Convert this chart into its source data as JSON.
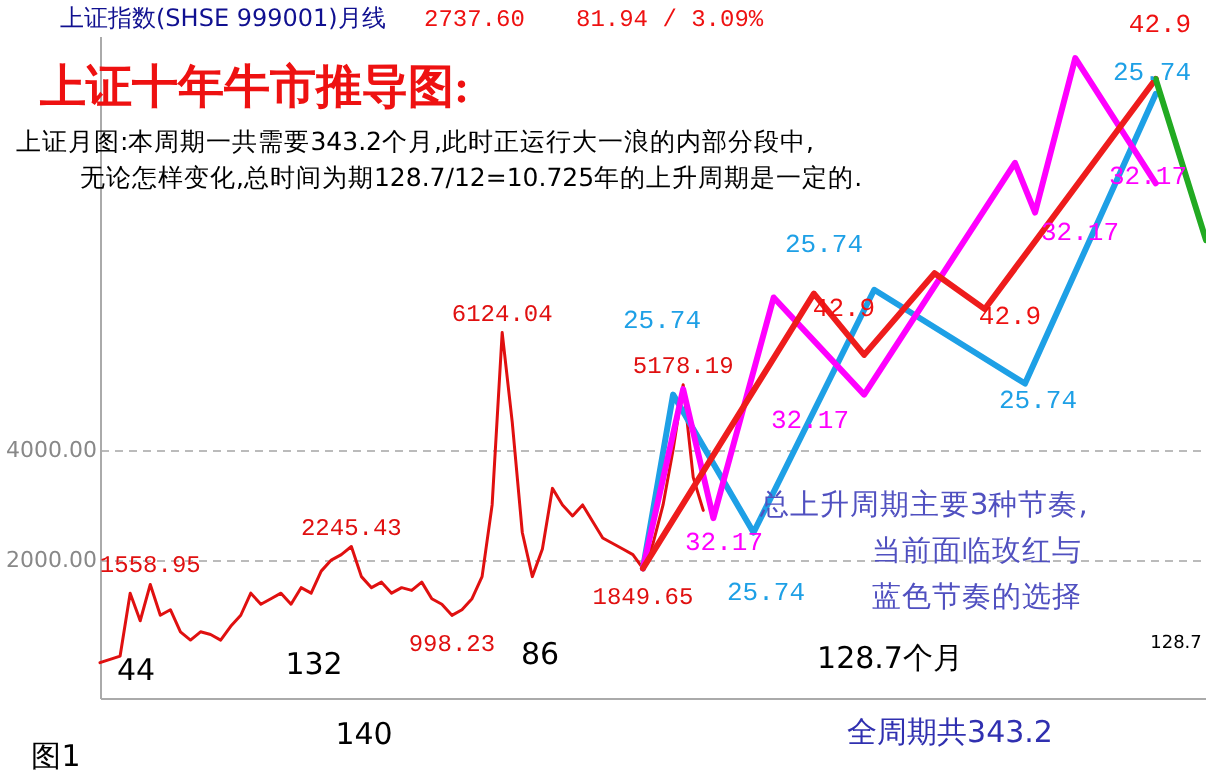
{
  "chart_data": {
    "type": "line",
    "title": "上证十年牛市推导图:",
    "subtitle": "上证月图:本周期一共需要343.2个月,此时正运行大一浪的内部分段中,\n无论怎样变化,总时间为期128.7/12=10.725年的上升周期是一定的.",
    "categories": [
      null,
      null,
      null,
      null,
      null,
      null,
      null,
      null,
      null,
      null,
      null,
      null,
      null,
      null,
      null,
      null,
      null,
      null,
      null,
      null,
      null,
      null,
      null,
      null,
      null,
      null,
      null,
      null,
      null,
      null,
      null,
      null,
      null,
      null,
      null,
      null,
      null,
      null,
      null,
      null,
      null,
      null,
      null,
      null,
      null,
      null,
      null,
      null,
      null,
      null,
      null,
      null,
      null,
      null,
      null,
      null,
      null,
      null,
      null,
      null,
      null,
      null,
      null,
      null,
      null,
      null,
      null,
      null,
      null,
      null,
      null,
      null,
      null,
      null,
      null,
      null,
      null,
      null,
      null,
      null,
      null,
      null,
      null,
      null,
      null,
      null,
      null,
      null,
      null,
      null,
      null,
      null,
      null,
      null,
      null,
      null,
      null,
      null,
      null,
      null,
      null,
      null,
      null,
      null,
      null,
      null,
      null,
      null,
      null,
      null,
      null
    ],
    "ylim": [
      -500,
      11500
    ],
    "yticks": [
      {
        "value": 2000,
        "label": "2000.00"
      },
      {
        "value": 4000,
        "label": "4000.00"
      }
    ],
    "tick_labels": "y",
    "grid": "y",
    "line_style": "solid",
    "series": [
      {
        "color": "#e01010",
        "values": [
          140,
          200,
          260,
          1400,
          900,
          1558.95,
          1000,
          1100,
          700,
          550,
          700,
          650,
          550,
          800,
          1000,
          1400,
          1200,
          1300,
          1400,
          1200,
          1500,
          1400,
          1800,
          2000,
          2100,
          2245.43,
          1700,
          1500,
          1600,
          1400,
          1500,
          1450,
          1600,
          1300,
          1200,
          998.23,
          1100,
          1300,
          1700,
          3000,
          6124.04,
          4500,
          2500,
          1700,
          2200,
          3300,
          3000,
          2800,
          3000,
          2700,
          2400,
          2300,
          2200,
          2100,
          1849.65,
          2300,
          3000,
          4000,
          5178.19,
          3500,
          2900,
          null,
          null,
          null,
          null,
          null,
          null,
          null,
          null,
          null,
          null,
          null,
          null,
          null,
          null,
          null,
          null,
          null,
          null,
          null,
          null,
          null,
          null,
          null,
          null,
          null,
          null,
          null,
          null,
          null,
          null,
          null,
          null,
          null,
          null,
          null,
          null,
          null,
          null,
          null,
          null,
          null,
          null,
          null,
          null,
          null,
          null,
          null,
          null,
          null,
          null
        ],
        "value_labels": [
          null,
          null,
          null,
          null,
          null,
          "1558.95",
          null,
          null,
          null,
          null,
          null,
          null,
          null,
          null,
          null,
          null,
          null,
          null,
          null,
          null,
          null,
          null,
          null,
          null,
          null,
          "2245.43",
          null,
          null,
          null,
          null,
          null,
          null,
          null,
          null,
          null,
          "998.23",
          null,
          null,
          null,
          null,
          "6124.04",
          null,
          null,
          null,
          null,
          null,
          null,
          null,
          null,
          null,
          null,
          null,
          null,
          null,
          "1849.65",
          null,
          null,
          null,
          "5178.19",
          null,
          null,
          null,
          null,
          null,
          null,
          null,
          null,
          null,
          null,
          null,
          null,
          null,
          null,
          null,
          null,
          null,
          null,
          null,
          null,
          null,
          null,
          null,
          null,
          null,
          null,
          null,
          null,
          null,
          null,
          null,
          null,
          null,
          null,
          null,
          null,
          null,
          null,
          null,
          null,
          null,
          null,
          null,
          null,
          null,
          null,
          null,
          null,
          null,
          null,
          null,
          null
        ]
      },
      {
        "color": "#1ea0e6",
        "values": [
          null,
          null,
          null,
          null,
          null,
          null,
          null,
          null,
          null,
          null,
          null,
          null,
          null,
          null,
          null,
          null,
          null,
          null,
          null,
          null,
          null,
          null,
          null,
          null,
          null,
          null,
          null,
          null,
          null,
          null,
          null,
          null,
          null,
          null,
          null,
          null,
          null,
          null,
          null,
          null,
          null,
          null,
          null,
          null,
          null,
          null,
          null,
          null,
          null,
          null,
          null,
          null,
          null,
          null,
          1849.65,
          null,
          null,
          5000,
          null,
          null,
          null,
          null,
          null,
          null,
          null,
          2500,
          null,
          null,
          null,
          null,
          null,
          null,
          null,
          null,
          null,
          null,
          null,
          6900,
          null,
          null,
          null,
          null,
          null,
          null,
          null,
          null,
          null,
          null,
          null,
          null,
          null,
          null,
          5200,
          null,
          null,
          null,
          null,
          null,
          null,
          null,
          null,
          null,
          null,
          null,
          null,
          10450,
          null,
          null,
          null,
          null,
          null
        ]
      },
      {
        "color": "#ff00ff",
        "values": [
          null,
          null,
          null,
          null,
          null,
          null,
          null,
          null,
          null,
          null,
          null,
          null,
          null,
          null,
          null,
          null,
          null,
          null,
          null,
          null,
          null,
          null,
          null,
          null,
          null,
          null,
          null,
          null,
          null,
          null,
          null,
          null,
          null,
          null,
          null,
          null,
          null,
          null,
          null,
          null,
          null,
          null,
          null,
          null,
          null,
          null,
          null,
          null,
          null,
          null,
          null,
          null,
          null,
          null,
          1849.65,
          null,
          null,
          null,
          5100,
          null,
          null,
          2760,
          null,
          null,
          null,
          null,
          null,
          6760,
          null,
          null,
          null,
          null,
          null,
          null,
          null,
          null,
          5000,
          null,
          null,
          null,
          null,
          null,
          null,
          null,
          null,
          null,
          null,
          null,
          null,
          null,
          null,
          9200,
          null,
          8300,
          null,
          null,
          null,
          11100,
          null,
          null,
          null,
          null,
          null,
          null,
          null,
          8830,
          null,
          null,
          null,
          null,
          null
        ]
      },
      {
        "color": "#ee1c1c",
        "values": [
          null,
          null,
          null,
          null,
          null,
          null,
          null,
          null,
          null,
          null,
          null,
          null,
          null,
          null,
          null,
          null,
          null,
          null,
          null,
          null,
          null,
          null,
          null,
          null,
          null,
          null,
          null,
          null,
          null,
          null,
          null,
          null,
          null,
          null,
          null,
          null,
          null,
          null,
          null,
          null,
          null,
          null,
          null,
          null,
          null,
          null,
          null,
          null,
          null,
          null,
          null,
          null,
          null,
          null,
          1849.65,
          null,
          null,
          null,
          null,
          null,
          null,
          null,
          null,
          null,
          null,
          null,
          null,
          null,
          null,
          null,
          null,
          6830,
          null,
          null,
          null,
          null,
          5720,
          null,
          null,
          null,
          null,
          null,
          null,
          7200,
          null,
          null,
          null,
          null,
          6550,
          null,
          null,
          null,
          null,
          null,
          null,
          null,
          null,
          null,
          null,
          null,
          null,
          null,
          null,
          null,
          null,
          10720,
          null,
          null,
          null,
          null,
          null
        ]
      },
      {
        "color": "#22aa22",
        "values": [
          null,
          null,
          null,
          null,
          null,
          null,
          null,
          null,
          null,
          null,
          null,
          null,
          null,
          null,
          null,
          null,
          null,
          null,
          null,
          null,
          null,
          null,
          null,
          null,
          null,
          null,
          null,
          null,
          null,
          null,
          null,
          null,
          null,
          null,
          null,
          null,
          null,
          null,
          null,
          null,
          null,
          null,
          null,
          null,
          null,
          null,
          null,
          null,
          null,
          null,
          null,
          null,
          null,
          null,
          null,
          null,
          null,
          null,
          null,
          null,
          null,
          null,
          null,
          null,
          null,
          null,
          null,
          null,
          null,
          null,
          null,
          null,
          null,
          null,
          null,
          null,
          null,
          null,
          null,
          null,
          null,
          null,
          null,
          null,
          null,
          null,
          null,
          null,
          null,
          null,
          null,
          null,
          null,
          null,
          null,
          null,
          null,
          null,
          null,
          null,
          null,
          null,
          null,
          null,
          null,
          10720,
          null,
          null,
          null,
          null,
          7800
        ]
      }
    ],
    "annotations": [
      "上证指数(SHSE 999001)月线",
      "2737.60",
      "81.94 / 3.09%",
      "44",
      "132",
      "140",
      "86",
      "128.7个月",
      "128.7",
      "全周期共343.2",
      "图1",
      "总上升周期主要3种节奏,",
      "当前面临玫红与",
      "蓝色节奏的选择",
      "25.74",
      "25.74",
      "25.74",
      "25.74",
      "25.74",
      "32.17",
      "32.17",
      "32.17",
      "32.17",
      "42.9",
      "42.9",
      "42.9"
    ]
  }
}
